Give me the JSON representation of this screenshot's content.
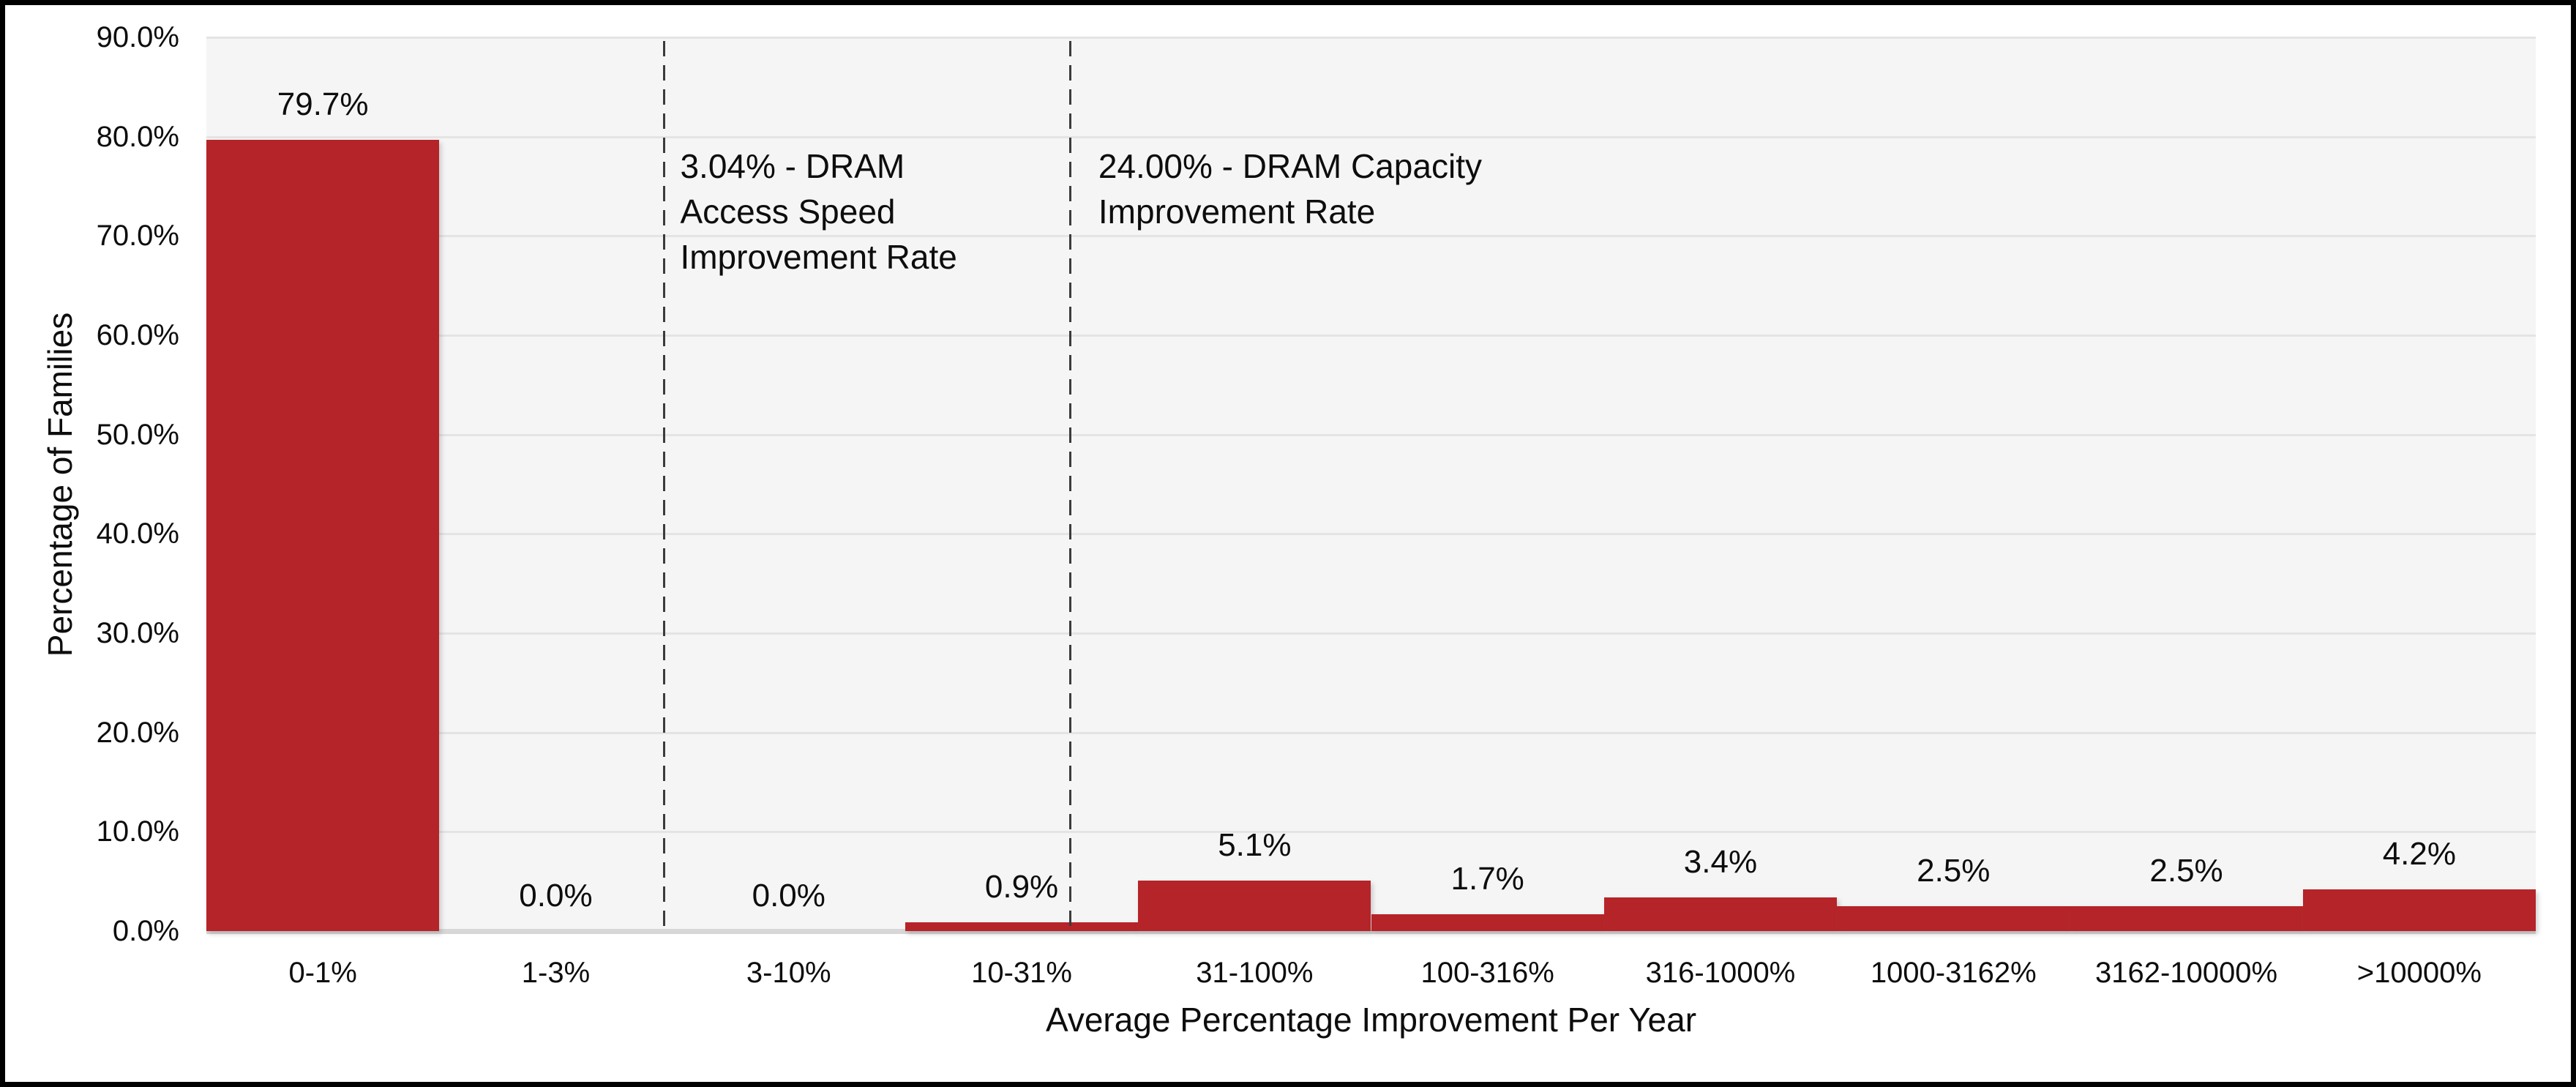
{
  "chart_data": {
    "type": "bar",
    "title": "",
    "categories": [
      "0-1%",
      "1-3%",
      "3-10%",
      "10-31%",
      "31-100%",
      "100-316%",
      "316-1000%",
      "1000-3162%",
      "3162-10000%",
      ">10000%"
    ],
    "values": [
      79.7,
      0.0,
      0.0,
      0.9,
      5.1,
      1.7,
      3.4,
      2.5,
      2.5,
      4.2
    ],
    "value_labels": [
      "79.7%",
      "0.0%",
      "0.0%",
      "0.9%",
      "5.1%",
      "1.7%",
      "3.4%",
      "2.5%",
      "2.5%",
      "4.2%"
    ],
    "xlabel": "Average Percentage Improvement Per Year",
    "ylabel": "Percentage of Families",
    "ylim": [
      0,
      90
    ],
    "ytick_step": 10,
    "ytick_labels": [
      "0.0%",
      "10.0%",
      "20.0%",
      "30.0%",
      "40.0%",
      "50.0%",
      "60.0%",
      "70.0%",
      "80.0%",
      "90.0%"
    ],
    "grid": true,
    "legend": "none",
    "bar_gap": 0,
    "annotations": [
      {
        "text": "3.04% - DRAM\nAccess Speed\nImprovement Rate",
        "value": "3.04%",
        "line_x_category_units": 1.965
      },
      {
        "text": "24.00% - DRAM Capacity\nImprovement Rate",
        "value": "24.00%",
        "line_x_category_units": 3.71
      }
    ],
    "colors": {
      "bar": "#b52428",
      "plot_background": "#f5f5f5",
      "outer_background": "#ffffff",
      "gridline": "#e4e4e4",
      "axis_line": "#d7d7d7",
      "dashed_line": "#3b3b3b",
      "text": "#0d0d0d",
      "frame_border": "#000000"
    }
  }
}
